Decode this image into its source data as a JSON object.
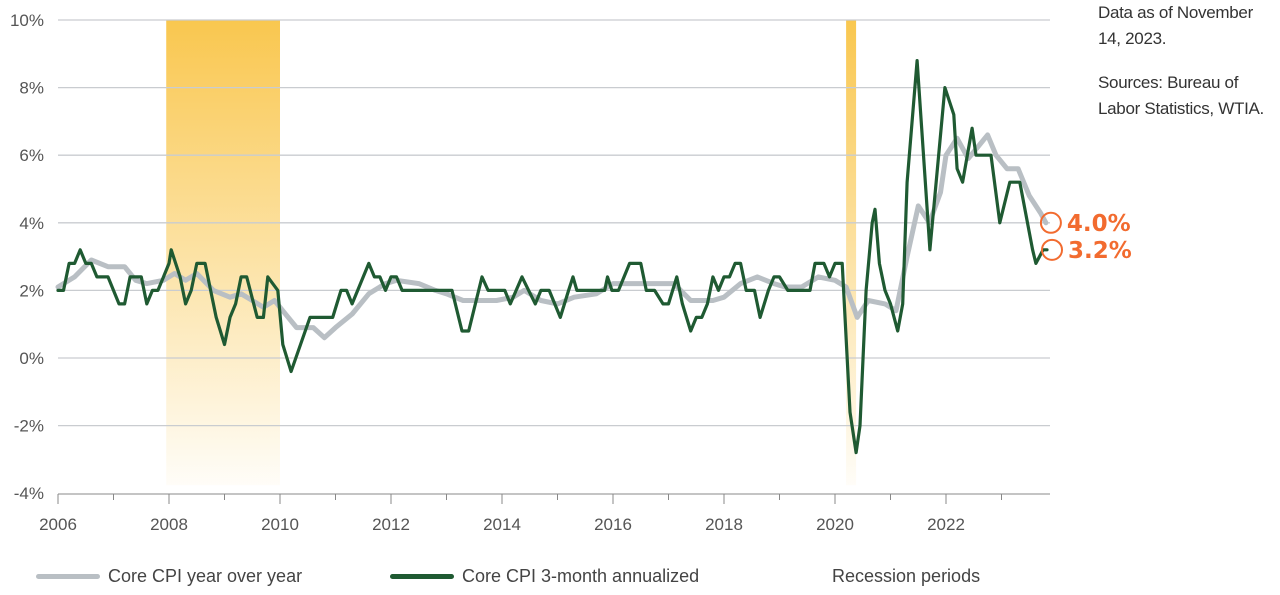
{
  "notes": {
    "data_as_of": "Data as of November 14, 2023.",
    "sources": "Sources: Bureau of Labor Statistics, WTIA."
  },
  "colors": {
    "yoy": "#b9bfc4",
    "three_month": "#1f5a32",
    "recession": "#f9c74f",
    "annotation": "#f26b2f",
    "grid": "#c9ccd0"
  },
  "chart_data": {
    "type": "line",
    "xlim": [
      2006,
      2023.9
    ],
    "ylim": [
      -4,
      10
    ],
    "x_ticks": [
      "2006",
      "2008",
      "2010",
      "2012",
      "2014",
      "2016",
      "2018",
      "2020",
      "2022"
    ],
    "y_ticks": [
      "10%",
      "8%",
      "6%",
      "4%",
      "2%",
      "0%",
      "-2%",
      "-4%"
    ],
    "grid": "horizontal",
    "legend_position": "bottom",
    "recessions": [
      [
        2007.95,
        2010.0
      ],
      [
        2020.2,
        2020.38
      ]
    ],
    "series": [
      {
        "name": "Core CPI year over year",
        "points": [
          [
            2006.0,
            2.1
          ],
          [
            2006.3,
            2.4
          ],
          [
            2006.6,
            2.9
          ],
          [
            2006.9,
            2.7
          ],
          [
            2007.2,
            2.7
          ],
          [
            2007.4,
            2.3
          ],
          [
            2007.6,
            2.2
          ],
          [
            2007.9,
            2.3
          ],
          [
            2008.1,
            2.5
          ],
          [
            2008.3,
            2.3
          ],
          [
            2008.5,
            2.5
          ],
          [
            2008.8,
            2.0
          ],
          [
            2009.1,
            1.8
          ],
          [
            2009.3,
            1.9
          ],
          [
            2009.5,
            1.7
          ],
          [
            2009.7,
            1.5
          ],
          [
            2009.9,
            1.7
          ],
          [
            2010.1,
            1.3
          ],
          [
            2010.3,
            0.9
          ],
          [
            2010.6,
            0.9
          ],
          [
            2010.8,
            0.6
          ],
          [
            2011.0,
            0.9
          ],
          [
            2011.3,
            1.3
          ],
          [
            2011.6,
            1.9
          ],
          [
            2011.9,
            2.2
          ],
          [
            2012.1,
            2.3
          ],
          [
            2012.5,
            2.2
          ],
          [
            2012.8,
            2.0
          ],
          [
            2013.0,
            1.9
          ],
          [
            2013.3,
            1.7
          ],
          [
            2013.6,
            1.7
          ],
          [
            2013.9,
            1.7
          ],
          [
            2014.2,
            1.8
          ],
          [
            2014.4,
            2.0
          ],
          [
            2014.7,
            1.7
          ],
          [
            2015.0,
            1.6
          ],
          [
            2015.3,
            1.8
          ],
          [
            2015.7,
            1.9
          ],
          [
            2016.0,
            2.2
          ],
          [
            2016.3,
            2.2
          ],
          [
            2016.6,
            2.2
          ],
          [
            2016.9,
            2.2
          ],
          [
            2017.1,
            2.2
          ],
          [
            2017.4,
            1.7
          ],
          [
            2017.8,
            1.7
          ],
          [
            2018.0,
            1.8
          ],
          [
            2018.3,
            2.2
          ],
          [
            2018.6,
            2.4
          ],
          [
            2018.9,
            2.2
          ],
          [
            2019.1,
            2.1
          ],
          [
            2019.4,
            2.1
          ],
          [
            2019.7,
            2.4
          ],
          [
            2020.0,
            2.3
          ],
          [
            2020.2,
            2.1
          ],
          [
            2020.4,
            1.2
          ],
          [
            2020.6,
            1.7
          ],
          [
            2020.9,
            1.6
          ],
          [
            2021.1,
            1.4
          ],
          [
            2021.3,
            3.0
          ],
          [
            2021.5,
            4.5
          ],
          [
            2021.7,
            4.0
          ],
          [
            2021.9,
            4.9
          ],
          [
            2022.0,
            6.0
          ],
          [
            2022.2,
            6.5
          ],
          [
            2022.4,
            5.9
          ],
          [
            2022.6,
            6.3
          ],
          [
            2022.75,
            6.6
          ],
          [
            2022.9,
            6.0
          ],
          [
            2023.1,
            5.6
          ],
          [
            2023.3,
            5.6
          ],
          [
            2023.5,
            4.8
          ],
          [
            2023.7,
            4.3
          ],
          [
            2023.8,
            4.0
          ]
        ]
      },
      {
        "name": "Core CPI 3-month annualized",
        "points": [
          [
            2006.0,
            2.0
          ],
          [
            2006.1,
            2.0
          ],
          [
            2006.2,
            2.8
          ],
          [
            2006.3,
            2.8
          ],
          [
            2006.4,
            3.2
          ],
          [
            2006.5,
            2.8
          ],
          [
            2006.6,
            2.8
          ],
          [
            2006.7,
            2.4
          ],
          [
            2006.9,
            2.4
          ],
          [
            2007.1,
            1.6
          ],
          [
            2007.2,
            1.6
          ],
          [
            2007.3,
            2.4
          ],
          [
            2007.5,
            2.4
          ],
          [
            2007.6,
            1.6
          ],
          [
            2007.7,
            2.0
          ],
          [
            2007.8,
            2.0
          ],
          [
            2007.9,
            2.4
          ],
          [
            2008.0,
            2.8
          ],
          [
            2008.04,
            3.2
          ],
          [
            2008.2,
            2.4
          ],
          [
            2008.3,
            1.6
          ],
          [
            2008.4,
            2.0
          ],
          [
            2008.5,
            2.8
          ],
          [
            2008.65,
            2.8
          ],
          [
            2008.85,
            1.2
          ],
          [
            2009.0,
            0.4
          ],
          [
            2009.1,
            1.2
          ],
          [
            2009.2,
            1.6
          ],
          [
            2009.3,
            2.4
          ],
          [
            2009.4,
            2.4
          ],
          [
            2009.59,
            1.2
          ],
          [
            2009.7,
            1.2
          ],
          [
            2009.78,
            2.4
          ],
          [
            2009.96,
            2.0
          ],
          [
            2010.05,
            0.4
          ],
          [
            2010.2,
            -0.4
          ],
          [
            2010.54,
            1.2
          ],
          [
            2010.95,
            1.2
          ],
          [
            2011.1,
            2.0
          ],
          [
            2011.2,
            2.0
          ],
          [
            2011.3,
            1.6
          ],
          [
            2011.6,
            2.8
          ],
          [
            2011.7,
            2.4
          ],
          [
            2011.8,
            2.4
          ],
          [
            2011.9,
            2.0
          ],
          [
            2012.0,
            2.4
          ],
          [
            2012.1,
            2.4
          ],
          [
            2012.2,
            2.0
          ],
          [
            2013.1,
            2.0
          ],
          [
            2013.28,
            0.8
          ],
          [
            2013.4,
            0.8
          ],
          [
            2013.64,
            2.4
          ],
          [
            2013.75,
            2.0
          ],
          [
            2014.05,
            2.0
          ],
          [
            2014.15,
            1.6
          ],
          [
            2014.36,
            2.4
          ],
          [
            2014.6,
            1.6
          ],
          [
            2014.7,
            2.0
          ],
          [
            2014.85,
            2.0
          ],
          [
            2015.05,
            1.2
          ],
          [
            2015.2,
            2.0
          ],
          [
            2015.28,
            2.4
          ],
          [
            2015.35,
            2.0
          ],
          [
            2015.85,
            2.0
          ],
          [
            2015.9,
            2.4
          ],
          [
            2015.98,
            2.0
          ],
          [
            2016.1,
            2.0
          ],
          [
            2016.3,
            2.8
          ],
          [
            2016.5,
            2.8
          ],
          [
            2016.6,
            2.0
          ],
          [
            2016.75,
            2.0
          ],
          [
            2016.9,
            1.6
          ],
          [
            2017.0,
            1.6
          ],
          [
            2017.15,
            2.4
          ],
          [
            2017.25,
            1.6
          ],
          [
            2017.4,
            0.8
          ],
          [
            2017.5,
            1.2
          ],
          [
            2017.6,
            1.2
          ],
          [
            2017.7,
            1.6
          ],
          [
            2017.8,
            2.4
          ],
          [
            2017.9,
            2.0
          ],
          [
            2018.0,
            2.4
          ],
          [
            2018.1,
            2.4
          ],
          [
            2018.2,
            2.8
          ],
          [
            2018.3,
            2.8
          ],
          [
            2018.4,
            2.0
          ],
          [
            2018.55,
            2.0
          ],
          [
            2018.65,
            1.2
          ],
          [
            2018.8,
            2.0
          ],
          [
            2018.9,
            2.4
          ],
          [
            2019.0,
            2.4
          ],
          [
            2019.15,
            2.0
          ],
          [
            2019.55,
            2.0
          ],
          [
            2019.64,
            2.8
          ],
          [
            2019.8,
            2.8
          ],
          [
            2019.9,
            2.4
          ],
          [
            2020.0,
            2.8
          ],
          [
            2020.13,
            2.8
          ],
          [
            2020.27,
            -1.6
          ],
          [
            2020.38,
            -2.8
          ],
          [
            2020.45,
            -2.0
          ],
          [
            2020.56,
            2.0
          ],
          [
            2020.67,
            4.0
          ],
          [
            2020.72,
            4.4
          ],
          [
            2020.8,
            2.8
          ],
          [
            2020.9,
            2.0
          ],
          [
            2021.0,
            1.6
          ],
          [
            2021.13,
            0.8
          ],
          [
            2021.22,
            1.6
          ],
          [
            2021.3,
            5.2
          ],
          [
            2021.48,
            8.8
          ],
          [
            2021.71,
            3.2
          ],
          [
            2021.98,
            8.0
          ],
          [
            2022.14,
            7.2
          ],
          [
            2022.2,
            5.6
          ],
          [
            2022.3,
            5.2
          ],
          [
            2022.47,
            6.8
          ],
          [
            2022.54,
            6.0
          ],
          [
            2022.81,
            6.0
          ],
          [
            2022.97,
            4.0
          ],
          [
            2023.15,
            5.2
          ],
          [
            2023.33,
            5.2
          ],
          [
            2023.56,
            3.2
          ],
          [
            2023.62,
            2.8
          ],
          [
            2023.75,
            3.2
          ],
          [
            2023.82,
            3.2
          ]
        ]
      }
    ],
    "end_labels": [
      "4.0%",
      "3.2%"
    ],
    "legend": [
      "Core CPI year over year",
      "Core CPI 3-month annualized",
      "Recession periods"
    ]
  }
}
